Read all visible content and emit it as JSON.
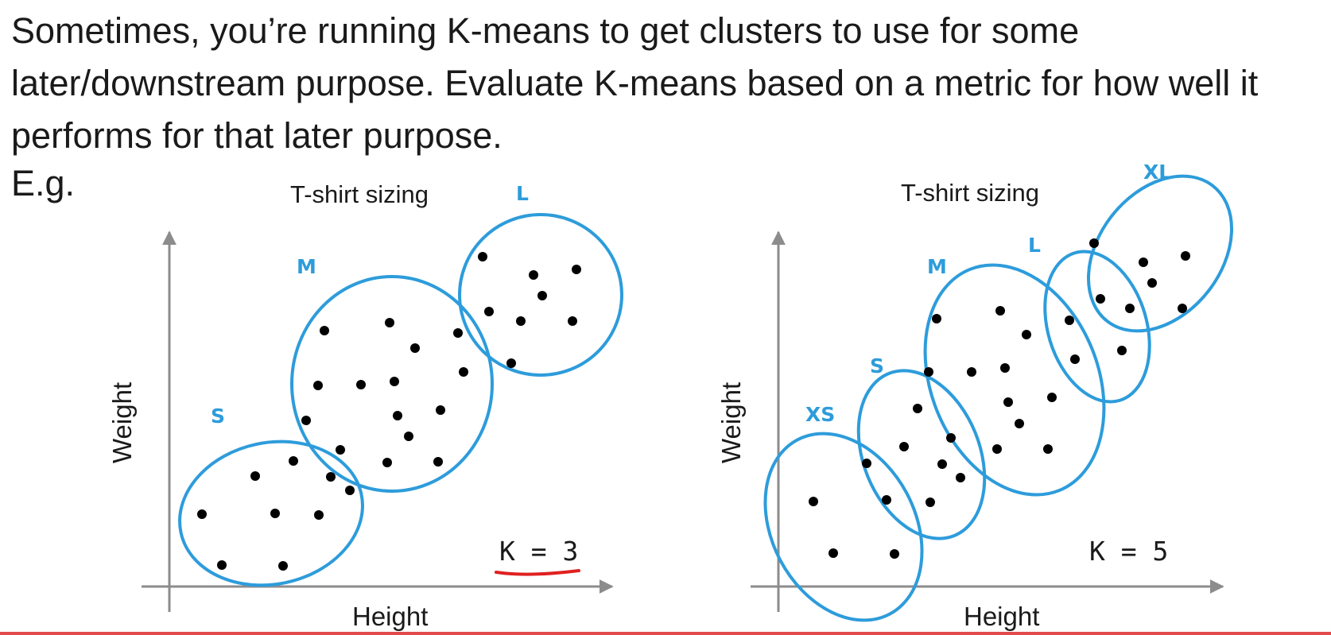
{
  "slide": {
    "text": "Sometimes, you’re running K-means to get clusters to use for some later/downstream purpose. Evaluate K-means based on a metric for how well it performs for that later purpose.",
    "example_label": "E.g."
  },
  "diagrams": [
    {
      "title": "T-shirt sizing",
      "x_axis": "Height",
      "y_axis": "Weight",
      "k_label": "K = 3",
      "clusters": [
        "S",
        "M",
        "L"
      ],
      "k_underlined": true,
      "underline_color": "#e02020"
    },
    {
      "title": "T-shirt sizing",
      "x_axis": "Height",
      "y_axis": "Weight",
      "k_label": "K = 5",
      "clusters": [
        "XS",
        "S",
        "M",
        "L",
        "XL"
      ],
      "k_underlined": false
    }
  ],
  "colors": {
    "cluster": "#2d9cdb",
    "point": "#000000",
    "axis": "#8c8c8c",
    "text": "#1a1a1a"
  }
}
